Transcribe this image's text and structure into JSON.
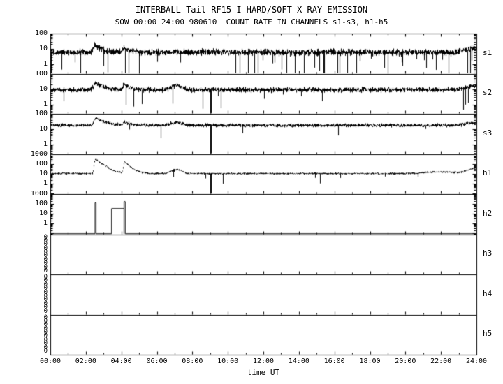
{
  "chart_data": {
    "type": "line",
    "title": "INTERBALL-Tail RF15-I HARD/SOFT X-RAY EMISSION",
    "subtitle": "SOW 00:00 24:00 980610  COUNT RATE IN CHANNELS s1-s3, h1-h5",
    "xlabel": "time UT",
    "x_ticks": [
      "00:00",
      "02:00",
      "04:00",
      "06:00",
      "08:00",
      "10:00",
      "12:00",
      "14:00",
      "16:00",
      "18:00",
      "20:00",
      "22:00",
      "24:00"
    ],
    "x_range_hours": [
      0,
      24
    ],
    "yscale": "log",
    "grid": false,
    "line_color": "#000000",
    "background": "#ffffff",
    "panels": [
      {
        "id": "s1",
        "label": "s1",
        "type": "noise",
        "ytop": 100,
        "decades": 2.6,
        "yticks": [
          "100",
          "10",
          "1"
        ],
        "baseline": 6,
        "noise_dex": 0.2,
        "dropout_prob": 0.08,
        "dropout_dex": [
          0.4,
          2.3
        ],
        "events": [
          {
            "t": 2.55,
            "amp": 1.6,
            "w": 0.1,
            "decay": 0.35
          },
          {
            "t": 4.15,
            "amp": 1.0,
            "w": 0.06,
            "decay": 0.25
          },
          {
            "t": 24.0,
            "amp": 0.9,
            "w": 0.5
          }
        ]
      },
      {
        "id": "s2",
        "label": "s2",
        "type": "noise",
        "ytop": 100,
        "decades": 2.6,
        "yticks": [
          "100",
          "10",
          "1"
        ],
        "baseline": 9,
        "noise_dex": 0.16,
        "dropout_prob": 0.025,
        "dropout_dex": [
          0.3,
          1.4
        ],
        "events": [
          {
            "t": 2.55,
            "amp": 1.7,
            "w": 0.1,
            "decay": 0.4
          },
          {
            "t": 4.15,
            "amp": 1.1,
            "w": 0.06,
            "decay": 0.3
          },
          {
            "t": 7.1,
            "amp": 0.9,
            "w": 0.25
          },
          {
            "t": 24.0,
            "amp": 0.8,
            "w": 0.5
          }
        ],
        "spikes_down": [
          9.05
        ]
      },
      {
        "id": "s3",
        "label": "s3",
        "type": "noise",
        "ytop": 100,
        "decades": 2.6,
        "yticks": [
          "100",
          "10",
          "1"
        ],
        "baseline": 18,
        "noise_dex": 0.11,
        "dropout_prob": 0.012,
        "dropout_dex": [
          0.2,
          0.9
        ],
        "events": [
          {
            "t": 2.6,
            "amp": 1.9,
            "w": 0.12,
            "decay": 0.45
          },
          {
            "t": 4.2,
            "amp": 0.6,
            "w": 0.08,
            "decay": 0.3
          },
          {
            "t": 7.1,
            "amp": 0.5,
            "w": 0.3
          },
          {
            "t": 24.0,
            "amp": 0.5,
            "w": 0.5
          }
        ],
        "spikes_down": [
          9.05
        ]
      },
      {
        "id": "h1",
        "label": "h1",
        "type": "noise",
        "ytop": 1000,
        "decades": 4.1,
        "yticks": [
          "1000",
          "100",
          "10",
          "1"
        ],
        "baseline": 10,
        "noise_dex": 0.09,
        "dropout_prob": 0.02,
        "dropout_dex": [
          0.2,
          1.1
        ],
        "events": [
          {
            "t": 2.55,
            "amp": 28,
            "w": 0.05,
            "decay": 0.3
          },
          {
            "t": 3.05,
            "amp": 1.2,
            "w": 0.12
          },
          {
            "t": 4.2,
            "amp": 14,
            "w": 0.05,
            "decay": 0.25
          },
          {
            "t": 7.1,
            "amp": 1.6,
            "w": 0.25
          },
          {
            "t": 22.0,
            "amp": 0.5,
            "w": 0.8
          },
          {
            "t": 24.0,
            "amp": 2.5,
            "w": 0.4
          }
        ],
        "spikes_down": [
          9.05
        ]
      },
      {
        "id": "h2",
        "label": "h2",
        "type": "steps",
        "ytop": 1000,
        "decades": 4.1,
        "yticks": [
          "1000",
          "100",
          "10",
          "1"
        ],
        "base": 0.02,
        "segments": [
          {
            "t0": 2.52,
            "t1": 2.58,
            "v": 130
          },
          {
            "t0": 3.45,
            "t1": 4.15,
            "v": 33
          },
          {
            "t0": 4.15,
            "t1": 4.22,
            "v": 170
          }
        ]
      },
      {
        "id": "h3",
        "label": "h3",
        "type": "empty",
        "zero_label": "0",
        "zero_count": 10
      },
      {
        "id": "h4",
        "label": "h4",
        "type": "empty",
        "zero_label": "0",
        "zero_count": 10
      },
      {
        "id": "h5",
        "label": "h5",
        "type": "empty",
        "zero_label": "0",
        "zero_count": 10
      }
    ]
  }
}
